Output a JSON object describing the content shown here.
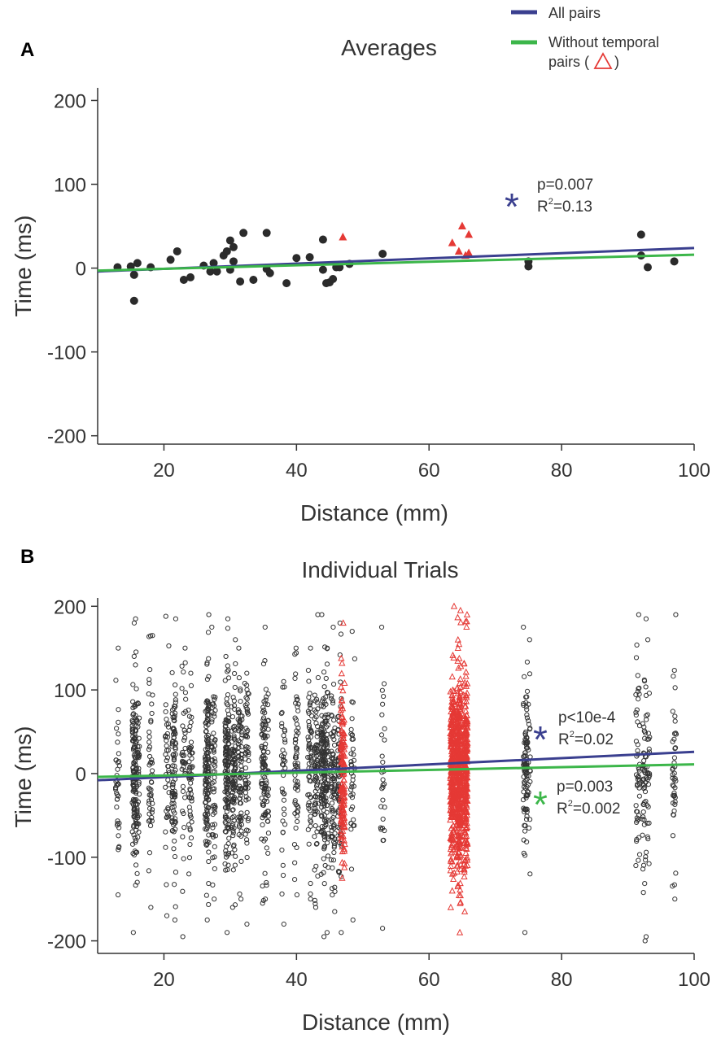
{
  "legend": {
    "all_pairs_label": "All pairs",
    "without_temporal_line1": "Without temporal",
    "without_temporal_line2_prefix": "pairs (",
    "without_temporal_line2_suffix": ")",
    "colors": {
      "all_pairs": "#3a3f8f",
      "without_temporal": "#3cb64a",
      "temporal_marker": "#e53935"
    }
  },
  "chart_data": [
    {
      "type": "scatter",
      "panel_letter": "A",
      "title": "Averages",
      "xlabel": "Distance (mm)",
      "ylabel": "Time (ms)",
      "xlim": [
        10,
        100
      ],
      "ylim": [
        -210,
        215
      ],
      "xticks": [
        20,
        40,
        60,
        80,
        100
      ],
      "yticks": [
        -200,
        -100,
        0,
        100,
        200
      ],
      "series": [
        {
          "marker": "circle",
          "points": [
            [
              13,
              1
            ],
            [
              15,
              2
            ],
            [
              15.5,
              -8
            ],
            [
              15.5,
              -39
            ],
            [
              16,
              6
            ],
            [
              18,
              1
            ],
            [
              21,
              10
            ],
            [
              22,
              20
            ],
            [
              23,
              -14
            ],
            [
              24,
              -11
            ],
            [
              26,
              3
            ],
            [
              27,
              -4
            ],
            [
              27.5,
              6
            ],
            [
              28,
              -4
            ],
            [
              29,
              15
            ],
            [
              29.5,
              20
            ],
            [
              30,
              33
            ],
            [
              30.5,
              25
            ],
            [
              30,
              -2
            ],
            [
              30.5,
              8
            ],
            [
              31.5,
              -16
            ],
            [
              32,
              42
            ],
            [
              33.5,
              -14
            ],
            [
              35.5,
              42
            ],
            [
              35.5,
              -1
            ],
            [
              36,
              -6
            ],
            [
              38.5,
              -18
            ],
            [
              40,
              12
            ],
            [
              42,
              13
            ],
            [
              44,
              34
            ],
            [
              44,
              -2
            ],
            [
              44.5,
              -18
            ],
            [
              45,
              -17
            ],
            [
              45.5,
              -13
            ],
            [
              46,
              1
            ],
            [
              46.5,
              1
            ],
            [
              48,
              5
            ],
            [
              53,
              17
            ],
            [
              75,
              8
            ],
            [
              75,
              2
            ],
            [
              92,
              40
            ],
            [
              92,
              15
            ],
            [
              93,
              1
            ],
            [
              97,
              8
            ]
          ]
        },
        {
          "marker": "filled-triangle",
          "points": [
            [
              47,
              37
            ],
            [
              63.5,
              30
            ],
            [
              64.5,
              20
            ],
            [
              65,
              50
            ],
            [
              65.5,
              15
            ],
            [
              66,
              40
            ],
            [
              66,
              18
            ]
          ]
        }
      ],
      "fits": [
        {
          "name": "All pairs",
          "x": [
            10,
            100
          ],
          "y": [
            -4,
            24
          ]
        },
        {
          "name": "Without temporal pairs",
          "x": [
            10,
            100
          ],
          "y": [
            -3,
            16
          ]
        }
      ],
      "annotations": [
        {
          "symbol": "*",
          "color": "#3a3f8f",
          "p": "p=0.007",
          "r2_prefix": "R",
          "r2_sup": "2",
          "r2_value": "=0.13"
        }
      ]
    },
    {
      "type": "scatter",
      "panel_letter": "B",
      "title": "Individual Trials",
      "xlabel": "Distance (mm)",
      "ylabel": "Time (ms)",
      "xlim": [
        10,
        100
      ],
      "ylim": [
        -215,
        210
      ],
      "xticks": [
        20,
        40,
        60,
        80,
        100
      ],
      "yticks": [
        -200,
        -100,
        0,
        100,
        200
      ],
      "series": [
        {
          "marker": "circle-open",
          "columns": [
            {
              "x": 13,
              "n": 40,
              "min": -145,
              "max": 150
            },
            {
              "x": 15.5,
              "n": 120,
              "min": -190,
              "max": 180
            },
            {
              "x": 16,
              "n": 60,
              "min": -130,
              "max": 185
            },
            {
              "x": 18,
              "n": 50,
              "min": -160,
              "max": 165
            },
            {
              "x": 20.5,
              "n": 40,
              "min": -170,
              "max": 188
            },
            {
              "x": 21.5,
              "n": 90,
              "min": -175,
              "max": 185
            },
            {
              "x": 23,
              "n": 40,
              "min": -195,
              "max": 150
            },
            {
              "x": 24,
              "n": 60,
              "min": -120,
              "max": 120
            },
            {
              "x": 26.5,
              "n": 140,
              "min": -175,
              "max": 190
            },
            {
              "x": 27.5,
              "n": 60,
              "min": -150,
              "max": 175
            },
            {
              "x": 29.5,
              "n": 150,
              "min": -190,
              "max": 185
            },
            {
              "x": 30.5,
              "n": 100,
              "min": -160,
              "max": 160
            },
            {
              "x": 31.5,
              "n": 80,
              "min": -150,
              "max": 150
            },
            {
              "x": 32.5,
              "n": 60,
              "min": -180,
              "max": 120
            },
            {
              "x": 35,
              "n": 70,
              "min": -155,
              "max": 175
            },
            {
              "x": 35.5,
              "n": 50,
              "min": -150,
              "max": 135
            },
            {
              "x": 38,
              "n": 40,
              "min": -180,
              "max": 110
            },
            {
              "x": 40,
              "n": 60,
              "min": -145,
              "max": 150
            },
            {
              "x": 42,
              "n": 60,
              "min": -150,
              "max": 150
            },
            {
              "x": 43,
              "n": 80,
              "min": -160,
              "max": 190
            },
            {
              "x": 44,
              "n": 120,
              "min": -195,
              "max": 190
            },
            {
              "x": 44.5,
              "n": 80,
              "min": -190,
              "max": 150
            },
            {
              "x": 45.5,
              "n": 90,
              "min": -165,
              "max": 175
            },
            {
              "x": 46.5,
              "n": 80,
              "min": -190,
              "max": 180
            },
            {
              "x": 48.5,
              "n": 40,
              "min": -175,
              "max": 170
            },
            {
              "x": 53,
              "n": 30,
              "min": -185,
              "max": 175
            },
            {
              "x": 74.5,
              "n": 70,
              "min": -190,
              "max": 175
            },
            {
              "x": 75,
              "n": 40,
              "min": -120,
              "max": 160
            },
            {
              "x": 91.5,
              "n": 50,
              "min": -110,
              "max": 190
            },
            {
              "x": 92.5,
              "n": 50,
              "min": -200,
              "max": 185
            },
            {
              "x": 93,
              "n": 30,
              "min": -195,
              "max": 160
            },
            {
              "x": 97,
              "n": 45,
              "min": -150,
              "max": 190
            }
          ]
        },
        {
          "marker": "triangle-open",
          "columns": [
            {
              "x": 47,
              "n": 140,
              "min": -125,
              "max": 180
            },
            {
              "x": 63.5,
              "n": 250,
              "min": -160,
              "max": 200
            },
            {
              "x": 64.5,
              "n": 350,
              "min": -190,
              "max": 195
            },
            {
              "x": 65.5,
              "n": 250,
              "min": -165,
              "max": 190
            }
          ]
        }
      ],
      "fits": [
        {
          "name": "All pairs",
          "x": [
            10,
            100
          ],
          "y": [
            -8,
            26
          ]
        },
        {
          "name": "Without temporal pairs",
          "x": [
            10,
            100
          ],
          "y": [
            -4,
            11
          ]
        }
      ],
      "annotations": [
        {
          "symbol": "*",
          "color": "#3a3f8f",
          "p": "p<10e-4",
          "r2_prefix": "R",
          "r2_sup": "2",
          "r2_value": "=0.02"
        },
        {
          "symbol": "*",
          "color": "#3cb64a",
          "p": "p=0.003",
          "r2_prefix": "R",
          "r2_sup": "2",
          "r2_value": "=0.002"
        }
      ]
    }
  ]
}
